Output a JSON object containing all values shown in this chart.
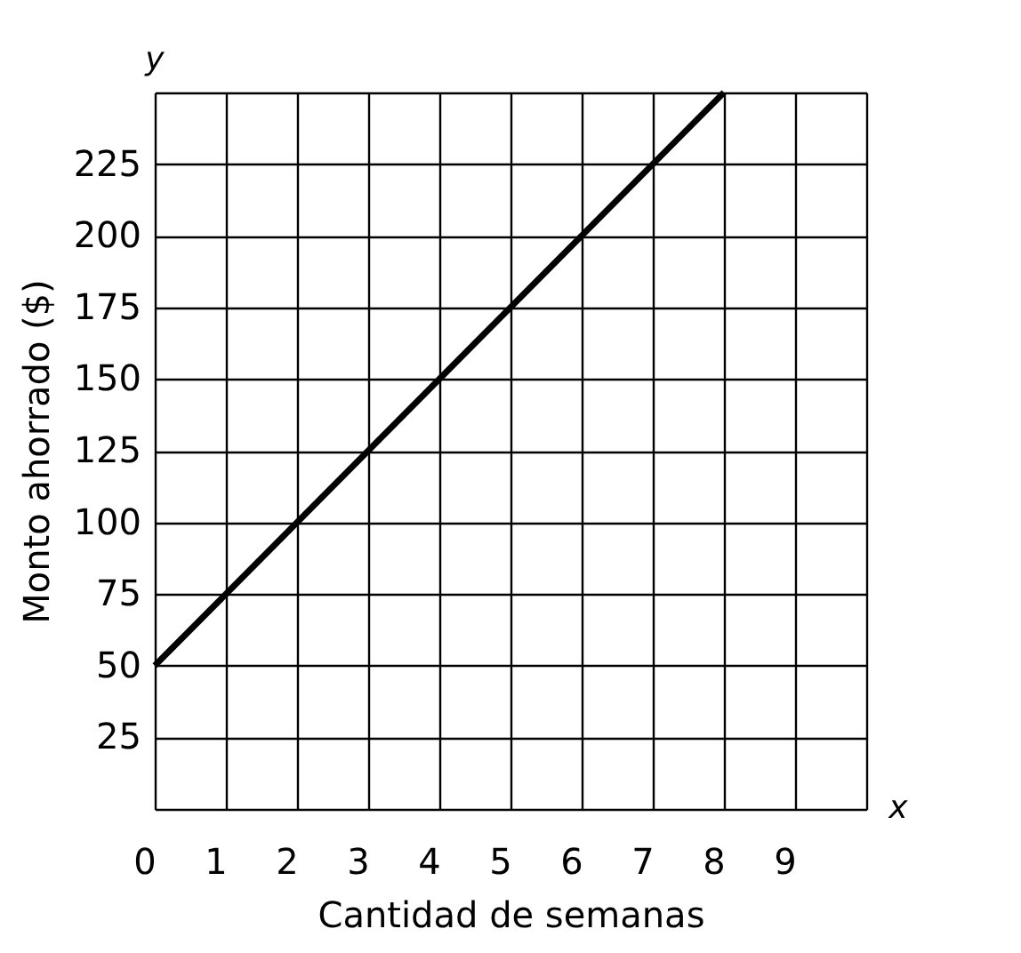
{
  "chart_data": {
    "type": "line",
    "xlabel": "Cantidad de semanas",
    "ylabel": "Monto ahorrado ($)",
    "annotations": [
      "x",
      "y"
    ],
    "x": [
      0,
      8
    ],
    "series": [
      {
        "color": "#000000",
        "values": [
          50,
          250
        ]
      }
    ],
    "xlim": [
      0,
      10
    ],
    "ylim": [
      0,
      250
    ],
    "xticks": [
      {
        "value": 0,
        "label": "0"
      },
      1,
      2,
      3,
      4,
      5,
      6,
      7,
      8,
      9,
      {
        "value": 10,
        "label": null
      }
    ],
    "yticks": [
      {
        "value": 0,
        "label": null
      },
      25,
      50,
      75,
      100,
      125,
      150,
      175,
      200,
      225,
      {
        "value": 250,
        "label": null
      }
    ],
    "grid": true,
    "marker": "none",
    "line_style": "solid",
    "legend": false
  }
}
